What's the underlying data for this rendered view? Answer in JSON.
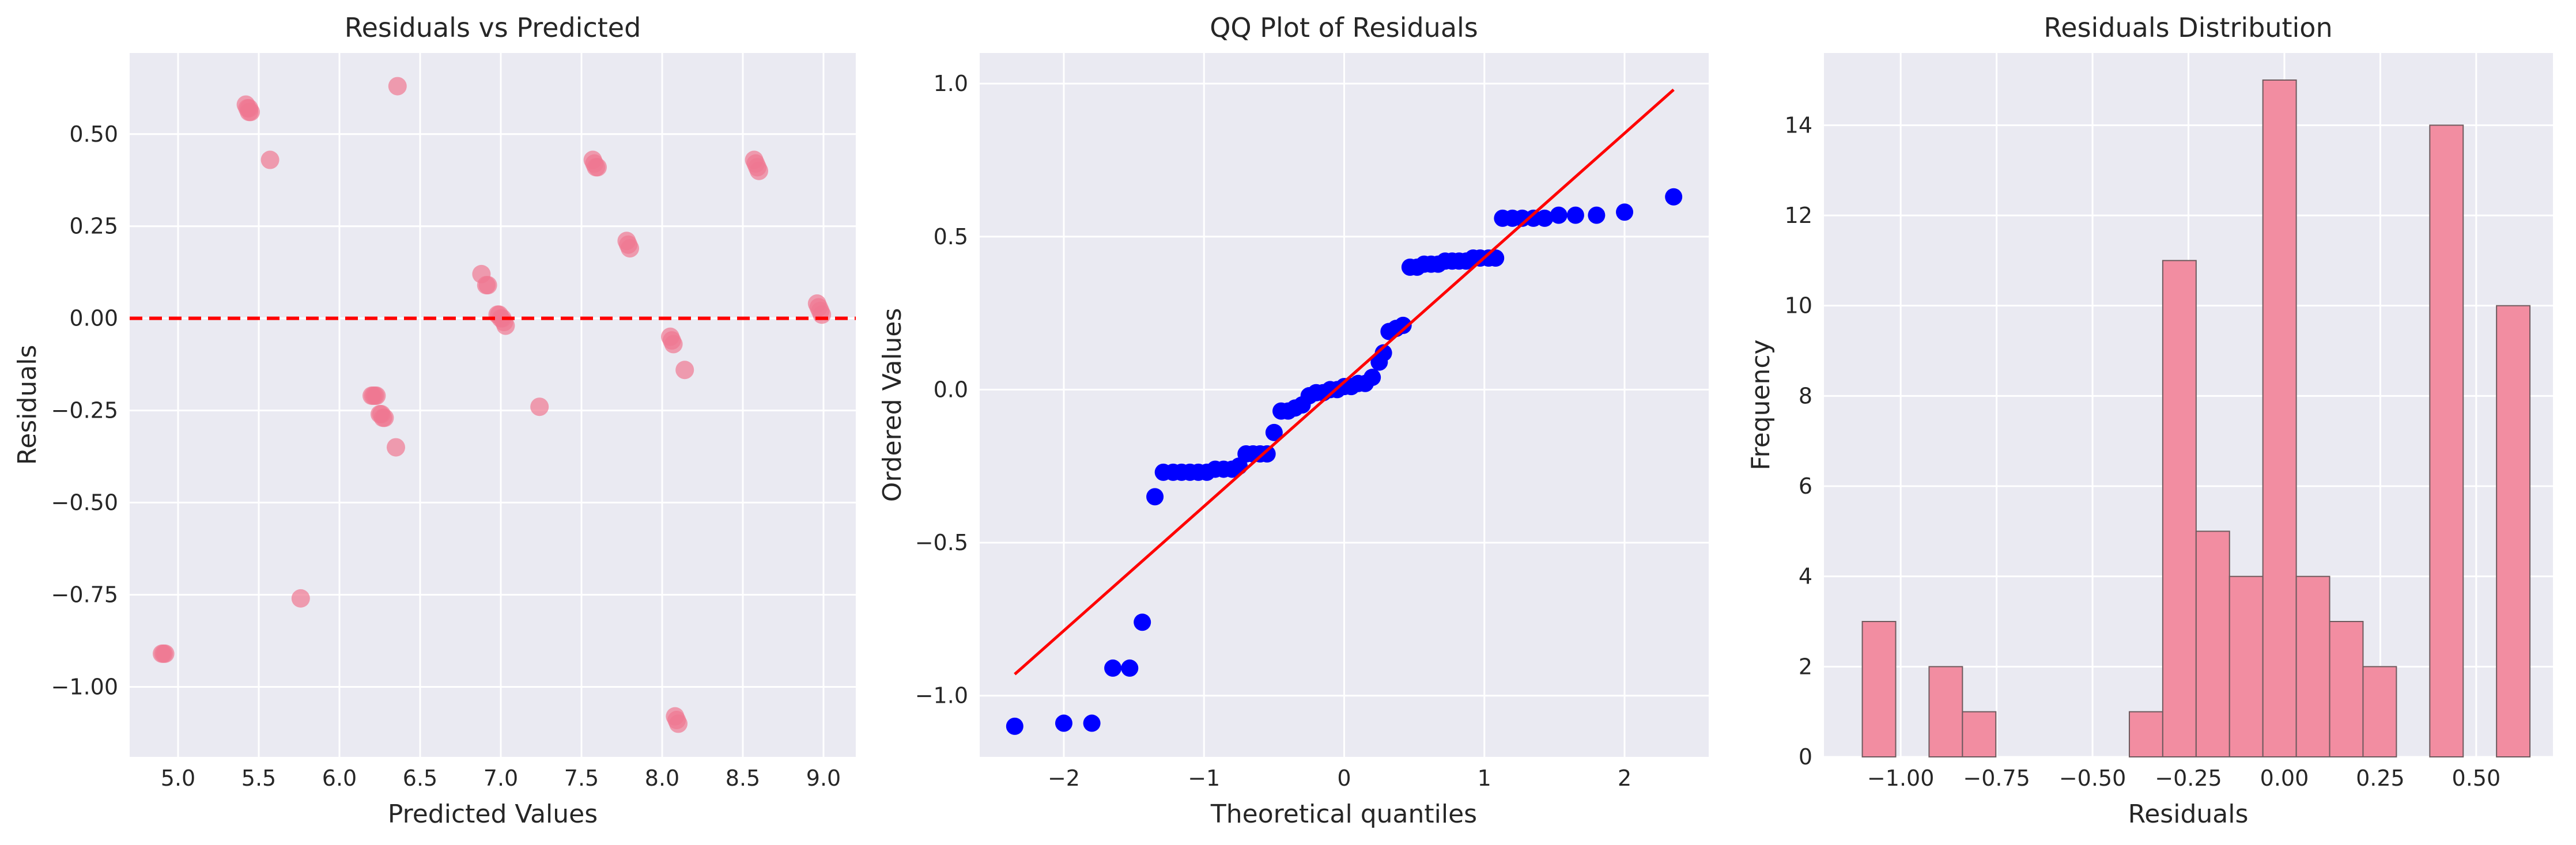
{
  "colors": {
    "axes_background": "#eaeaf2",
    "grid": "#ffffff",
    "scatter_points": "#f07891",
    "reference_line": "#ff0000",
    "qq_points": "#0000ff",
    "hist_bars": "#f28da1",
    "hist_edge": "#6e5a5e"
  },
  "chart_data": [
    {
      "type": "scatter",
      "title": "Residuals vs Predicted",
      "xlabel": "Predicted Values",
      "ylabel": "Residuals",
      "xlim": [
        4.7,
        9.2
      ],
      "ylim": [
        -1.19,
        0.72
      ],
      "xticks": [
        5.0,
        5.5,
        6.0,
        6.5,
        7.0,
        7.5,
        8.0,
        8.5,
        9.0
      ],
      "xtick_labels": [
        "5.0",
        "5.5",
        "6.0",
        "6.5",
        "7.0",
        "7.5",
        "8.0",
        "8.5",
        "9.0"
      ],
      "yticks": [
        -1.0,
        -0.75,
        -0.5,
        -0.25,
        0.0,
        0.25,
        0.5
      ],
      "ytick_labels": [
        "−1.00",
        "−0.75",
        "−0.50",
        "−0.25",
        "0.00",
        "0.25",
        "0.50"
      ],
      "reference_line": {
        "y": 0.0,
        "style": "dashed"
      },
      "points": [
        [
          4.9,
          -0.91
        ],
        [
          4.91,
          -0.91
        ],
        [
          4.92,
          -0.91
        ],
        [
          5.42,
          0.58
        ],
        [
          5.43,
          0.57
        ],
        [
          5.44,
          0.56
        ],
        [
          5.45,
          0.56
        ],
        [
          5.44,
          0.57
        ],
        [
          5.57,
          0.43
        ],
        [
          5.76,
          -0.76
        ],
        [
          6.2,
          -0.21
        ],
        [
          6.21,
          -0.21
        ],
        [
          6.22,
          -0.21
        ],
        [
          6.23,
          -0.21
        ],
        [
          6.25,
          -0.26
        ],
        [
          6.26,
          -0.26
        ],
        [
          6.27,
          -0.27
        ],
        [
          6.28,
          -0.27
        ],
        [
          6.35,
          -0.35
        ],
        [
          6.36,
          0.63
        ],
        [
          6.88,
          0.12
        ],
        [
          6.91,
          0.09
        ],
        [
          6.92,
          0.09
        ],
        [
          6.98,
          0.01
        ],
        [
          6.99,
          0.01
        ],
        [
          7.0,
          0.0
        ],
        [
          7.01,
          0.0
        ],
        [
          7.02,
          -0.01
        ],
        [
          7.03,
          -0.02
        ],
        [
          7.24,
          -0.24
        ],
        [
          7.57,
          0.43
        ],
        [
          7.58,
          0.42
        ],
        [
          7.59,
          0.41
        ],
        [
          7.6,
          0.41
        ],
        [
          7.78,
          0.21
        ],
        [
          7.79,
          0.2
        ],
        [
          7.8,
          0.19
        ],
        [
          8.05,
          -0.05
        ],
        [
          8.06,
          -0.06
        ],
        [
          8.07,
          -0.07
        ],
        [
          8.08,
          -1.08
        ],
        [
          8.09,
          -1.09
        ],
        [
          8.1,
          -1.1
        ],
        [
          8.14,
          -0.14
        ],
        [
          8.57,
          0.43
        ],
        [
          8.58,
          0.42
        ],
        [
          8.59,
          0.41
        ],
        [
          8.6,
          0.4
        ],
        [
          8.96,
          0.04
        ],
        [
          8.97,
          0.03
        ],
        [
          8.98,
          0.02
        ],
        [
          8.99,
          0.01
        ]
      ]
    },
    {
      "type": "scatter",
      "title": "QQ Plot of Residuals",
      "xlabel": "Theoretical quantiles",
      "ylabel": "Ordered Values",
      "xlim": [
        -2.6,
        2.6
      ],
      "ylim": [
        -1.2,
        1.1
      ],
      "xticks": [
        -2,
        -1,
        0,
        1,
        2
      ],
      "xtick_labels": [
        "−2",
        "−1",
        "0",
        "1",
        "2"
      ],
      "yticks": [
        -1.0,
        -0.5,
        0.0,
        0.5,
        1.0
      ],
      "ytick_labels": [
        "−1.0",
        "−0.5",
        "0.0",
        "0.5",
        "1.0"
      ],
      "fit_line": {
        "x": [
          -2.35,
          2.35
        ],
        "y": [
          -0.93,
          0.98
        ]
      },
      "points": [
        [
          -2.35,
          -1.1
        ],
        [
          -2.0,
          -1.09
        ],
        [
          -1.8,
          -1.09
        ],
        [
          -1.65,
          -0.91
        ],
        [
          -1.53,
          -0.91
        ],
        [
          -1.44,
          -0.76
        ],
        [
          -1.35,
          -0.35
        ],
        [
          -1.29,
          -0.27
        ],
        [
          -1.22,
          -0.27
        ],
        [
          -1.16,
          -0.27
        ],
        [
          -1.1,
          -0.27
        ],
        [
          -1.04,
          -0.27
        ],
        [
          -0.98,
          -0.27
        ],
        [
          -0.92,
          -0.26
        ],
        [
          -0.86,
          -0.26
        ],
        [
          -0.8,
          -0.26
        ],
        [
          -0.75,
          -0.25
        ],
        [
          -0.7,
          -0.21
        ],
        [
          -0.65,
          -0.21
        ],
        [
          -0.6,
          -0.21
        ],
        [
          -0.55,
          -0.21
        ],
        [
          -0.5,
          -0.14
        ],
        [
          -0.45,
          -0.07
        ],
        [
          -0.4,
          -0.07
        ],
        [
          -0.35,
          -0.06
        ],
        [
          -0.3,
          -0.05
        ],
        [
          -0.25,
          -0.02
        ],
        [
          -0.2,
          -0.01
        ],
        [
          -0.15,
          -0.01
        ],
        [
          -0.1,
          0.0
        ],
        [
          -0.05,
          0.0
        ],
        [
          0.0,
          0.01
        ],
        [
          0.05,
          0.01
        ],
        [
          0.1,
          0.02
        ],
        [
          0.15,
          0.02
        ],
        [
          0.2,
          0.04
        ],
        [
          0.25,
          0.09
        ],
        [
          0.28,
          0.12
        ],
        [
          0.32,
          0.19
        ],
        [
          0.37,
          0.2
        ],
        [
          0.42,
          0.21
        ],
        [
          0.47,
          0.4
        ],
        [
          0.52,
          0.4
        ],
        [
          0.57,
          0.41
        ],
        [
          0.62,
          0.41
        ],
        [
          0.67,
          0.41
        ],
        [
          0.72,
          0.42
        ],
        [
          0.77,
          0.42
        ],
        [
          0.82,
          0.42
        ],
        [
          0.87,
          0.42
        ],
        [
          0.92,
          0.43
        ],
        [
          0.97,
          0.43
        ],
        [
          1.03,
          0.43
        ],
        [
          1.08,
          0.43
        ],
        [
          1.13,
          0.56
        ],
        [
          1.2,
          0.56
        ],
        [
          1.27,
          0.56
        ],
        [
          1.35,
          0.56
        ],
        [
          1.43,
          0.56
        ],
        [
          1.53,
          0.57
        ],
        [
          1.65,
          0.57
        ],
        [
          1.8,
          0.57
        ],
        [
          2.0,
          0.58
        ],
        [
          2.35,
          0.63
        ]
      ]
    },
    {
      "type": "bar",
      "title": "Residuals Distribution",
      "xlabel": "Residuals",
      "ylabel": "Frequency",
      "xlim": [
        -1.2,
        0.7
      ],
      "ylim": [
        0,
        15.6
      ],
      "xticks": [
        -1.0,
        -0.75,
        -0.5,
        -0.25,
        0.0,
        0.25,
        0.5
      ],
      "xtick_labels": [
        "−1.00",
        "−0.75",
        "−0.50",
        "−0.25",
        "0.00",
        "0.25",
        "0.50"
      ],
      "yticks": [
        0,
        2,
        4,
        6,
        8,
        10,
        12,
        14
      ],
      "ytick_labels": [
        "0",
        "2",
        "4",
        "6",
        "8",
        "10",
        "12",
        "14"
      ],
      "bin_edges": [
        -1.1,
        -1.013,
        -0.926,
        -0.839,
        -0.752,
        -0.665,
        -0.578,
        -0.491,
        -0.404,
        -0.317,
        -0.23,
        -0.143,
        -0.056,
        0.031,
        0.118,
        0.205,
        0.292,
        0.379,
        0.466,
        0.553,
        0.64
      ],
      "values": [
        3,
        0,
        2,
        1,
        0,
        0,
        0,
        0,
        1,
        11,
        5,
        4,
        15,
        4,
        3,
        2,
        0,
        14,
        0,
        10
      ]
    }
  ]
}
